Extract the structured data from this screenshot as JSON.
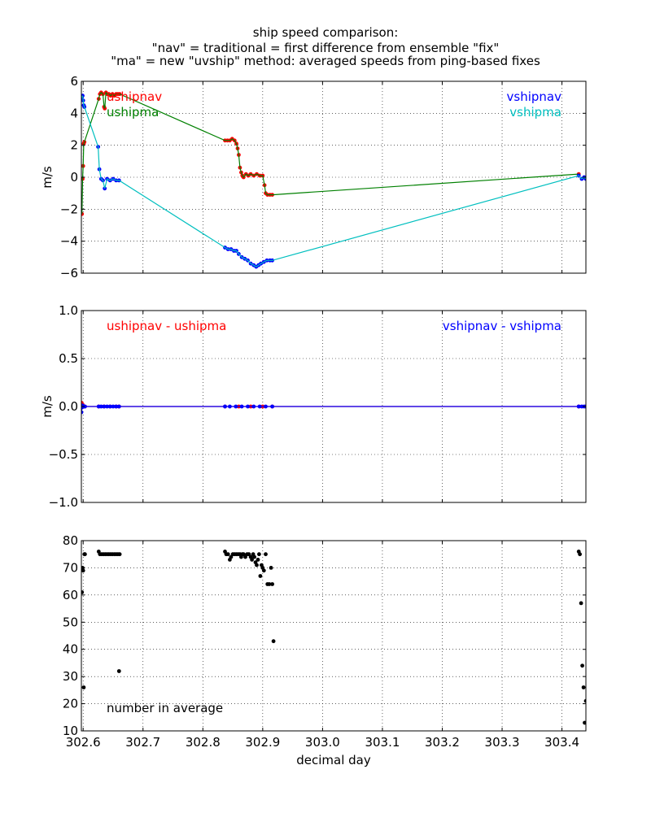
{
  "figure": {
    "title_lines": [
      "ship speed comparison:",
      "\"nav\" = traditional = first difference from ensemble \"fix\"",
      "\"ma\" = new \"uvship\" method: averaged speeds from ping-based fixes"
    ],
    "xlabel": "decimal day"
  },
  "chart_data": [
    {
      "type": "line",
      "ylabel": "m/s",
      "xlim": [
        302.597,
        303.44
      ],
      "ylim": [
        -6,
        6
      ],
      "x_ticks": [
        302.6,
        302.7,
        302.8,
        302.9,
        303.0,
        303.1,
        303.2,
        303.3,
        303.4
      ],
      "x_tick_labels": [],
      "y_ticks": [
        -6,
        -4,
        -2,
        0,
        2,
        4,
        6
      ],
      "y_tick_labels": [
        "−6",
        "−4",
        "−2",
        "0",
        "2",
        "4",
        "6"
      ],
      "grid": true,
      "annotations": [
        {
          "text": "ushipnav",
          "color": "#ff0000",
          "corner": "top-left"
        },
        {
          "text": "ushipma",
          "color": "#008000",
          "corner": "top-left"
        },
        {
          "text": "vshipnav",
          "color": "#0000ff",
          "corner": "top-right"
        },
        {
          "text": "vshipma",
          "color": "#00bfbf",
          "corner": "top-right"
        }
      ],
      "series": [
        {
          "name": "ushipnav",
          "color": "#ff0000",
          "style": "dots",
          "x": [
            302.598,
            302.599,
            302.6,
            302.601,
            302.602,
            302.626,
            302.628,
            302.63,
            302.633,
            302.635,
            302.636,
            302.638,
            302.64,
            302.643,
            302.646,
            302.649,
            302.652,
            302.655,
            302.658,
            302.661,
            302.837,
            302.841,
            302.845,
            302.849,
            302.853,
            302.856,
            302.858,
            302.86,
            302.862,
            302.864,
            302.866,
            302.868,
            302.872,
            302.876,
            302.88,
            302.885,
            302.89,
            302.895,
            302.9,
            302.903,
            302.905,
            302.908,
            302.912,
            302.916,
            303.428
          ],
          "y": [
            -2.3,
            -0.1,
            0.7,
            2.1,
            2.2,
            4.9,
            5.2,
            5.3,
            5.2,
            4.4,
            4.3,
            5.3,
            5.2,
            5.2,
            5.1,
            5.2,
            5.1,
            5.2,
            5.2,
            5.2,
            2.3,
            2.3,
            2.3,
            2.4,
            2.3,
            2.1,
            1.8,
            1.4,
            0.6,
            0.3,
            0.1,
            0.0,
            0.2,
            0.1,
            0.2,
            0.1,
            0.2,
            0.1,
            0.1,
            -0.5,
            -1.0,
            -1.1,
            -1.1,
            -1.1,
            0.2
          ]
        },
        {
          "name": "ushipma",
          "color": "#008000",
          "style": "line",
          "x": [
            302.598,
            302.599,
            302.6,
            302.601,
            302.602,
            302.626,
            302.628,
            302.63,
            302.633,
            302.635,
            302.636,
            302.638,
            302.64,
            302.643,
            302.646,
            302.649,
            302.652,
            302.655,
            302.658,
            302.661,
            302.837,
            302.841,
            302.845,
            302.849,
            302.853,
            302.856,
            302.858,
            302.86,
            302.862,
            302.864,
            302.866,
            302.868,
            302.872,
            302.876,
            302.88,
            302.885,
            302.89,
            302.895,
            302.9,
            302.903,
            302.905,
            302.908,
            302.912,
            302.916,
            303.428
          ],
          "y": [
            -2.3,
            -0.1,
            0.7,
            2.1,
            2.2,
            4.9,
            5.2,
            5.3,
            5.2,
            4.4,
            4.3,
            5.3,
            5.2,
            5.2,
            5.1,
            5.2,
            5.1,
            5.2,
            5.2,
            5.2,
            2.3,
            2.3,
            2.3,
            2.4,
            2.3,
            2.1,
            1.8,
            1.4,
            0.6,
            0.3,
            0.1,
            0.0,
            0.2,
            0.1,
            0.2,
            0.1,
            0.2,
            0.1,
            0.1,
            -0.5,
            -1.0,
            -1.1,
            -1.1,
            -1.1,
            0.2
          ]
        },
        {
          "name": "vshipnav",
          "color": "#0000ff",
          "style": "dots",
          "x": [
            302.598,
            302.599,
            302.6,
            302.601,
            302.602,
            302.625,
            302.627,
            302.63,
            302.633,
            302.636,
            302.64,
            302.645,
            302.65,
            302.655,
            302.66,
            302.837,
            302.842,
            302.847,
            302.852,
            302.856,
            302.86,
            302.865,
            302.87,
            302.875,
            302.88,
            302.885,
            302.889,
            302.893,
            302.897,
            302.902,
            302.907,
            302.912,
            302.916,
            303.428,
            303.433,
            303.437,
            303.44
          ],
          "y": [
            5.0,
            5.1,
            4.8,
            4.5,
            4.4,
            1.9,
            0.5,
            -0.1,
            -0.2,
            -0.7,
            -0.1,
            -0.2,
            -0.1,
            -0.2,
            -0.2,
            -4.4,
            -4.5,
            -4.5,
            -4.6,
            -4.6,
            -4.8,
            -5.0,
            -5.1,
            -5.2,
            -5.4,
            -5.5,
            -5.6,
            -5.5,
            -5.4,
            -5.3,
            -5.2,
            -5.2,
            -5.2,
            0.1,
            -0.1,
            0.0,
            -0.1
          ]
        },
        {
          "name": "vshipma",
          "color": "#00bfbf",
          "style": "line",
          "x": [
            302.598,
            302.599,
            302.6,
            302.601,
            302.602,
            302.625,
            302.627,
            302.63,
            302.633,
            302.636,
            302.64,
            302.645,
            302.65,
            302.655,
            302.66,
            302.837,
            302.842,
            302.847,
            302.852,
            302.856,
            302.86,
            302.865,
            302.87,
            302.875,
            302.88,
            302.885,
            302.889,
            302.893,
            302.897,
            302.902,
            302.907,
            302.912,
            302.916,
            303.428,
            303.433,
            303.437,
            303.44
          ],
          "y": [
            5.0,
            5.1,
            4.8,
            4.5,
            4.4,
            1.9,
            0.5,
            -0.1,
            -0.2,
            -0.7,
            -0.1,
            -0.2,
            -0.1,
            -0.2,
            -0.2,
            -4.4,
            -4.5,
            -4.5,
            -4.6,
            -4.6,
            -4.8,
            -5.0,
            -5.1,
            -5.2,
            -5.4,
            -5.5,
            -5.6,
            -5.5,
            -5.4,
            -5.3,
            -5.2,
            -5.2,
            -5.2,
            0.1,
            -0.1,
            0.0,
            -0.1
          ]
        }
      ]
    },
    {
      "type": "line",
      "ylabel": "m/s",
      "xlim": [
        302.597,
        303.44
      ],
      "ylim": [
        -1.0,
        1.0
      ],
      "x_ticks": [
        302.6,
        302.7,
        302.8,
        302.9,
        303.0,
        303.1,
        303.2,
        303.3,
        303.4
      ],
      "x_tick_labels": [],
      "y_ticks": [
        -1.0,
        -0.5,
        0.0,
        0.5,
        1.0
      ],
      "y_tick_labels": [
        "−1.0",
        "−0.5",
        "0.0",
        "0.5",
        "1.0"
      ],
      "grid": true,
      "annotations": [
        {
          "text": "ushipnav - ushipma",
          "color": "#ff0000",
          "corner": "top-left"
        },
        {
          "text": "vshipnav - vshipma",
          "color": "#0000ff",
          "corner": "top-right"
        }
      ],
      "series": [
        {
          "name": "ushipnav - ushipma",
          "color": "#ff0000",
          "style": "linedots",
          "x": [
            302.597,
            302.598,
            302.599,
            302.6,
            302.601,
            302.603,
            302.626,
            302.635,
            302.645,
            302.655,
            302.66,
            302.837,
            302.86,
            302.88,
            302.9,
            302.916,
            303.428,
            303.44
          ],
          "y": [
            0.04,
            -0.01,
            0.02,
            0.0,
            0.0,
            0.0,
            0.0,
            0.0,
            0.0,
            0.0,
            0.0,
            0.0,
            0.0,
            0.0,
            0.0,
            0.0,
            0.0,
            0.0
          ]
        },
        {
          "name": "vshipnav - vshipma",
          "color": "#0000ff",
          "style": "linedots",
          "x": [
            302.597,
            302.598,
            302.599,
            302.6,
            302.601,
            302.603,
            302.626,
            302.63,
            302.635,
            302.64,
            302.645,
            302.65,
            302.655,
            302.66,
            302.837,
            302.845,
            302.855,
            302.865,
            302.875,
            302.885,
            302.895,
            302.905,
            302.916,
            303.428,
            303.433,
            303.437,
            303.44
          ],
          "y": [
            -0.06,
            -0.01,
            0.01,
            0.0,
            0.0,
            0.0,
            0.0,
            0.0,
            0.0,
            0.0,
            0.0,
            0.0,
            0.0,
            0.0,
            0.0,
            0.0,
            0.0,
            0.0,
            0.0,
            0.0,
            0.0,
            0.0,
            0.0,
            0.0,
            0.0,
            0.0,
            0.0
          ]
        }
      ]
    },
    {
      "type": "scatter",
      "xlim": [
        302.597,
        303.44
      ],
      "ylim": [
        10,
        80
      ],
      "x_ticks": [
        302.6,
        302.7,
        302.8,
        302.9,
        303.0,
        303.1,
        303.2,
        303.3,
        303.4
      ],
      "x_tick_labels": [
        "302.6",
        "302.7",
        "302.8",
        "302.9",
        "303.0",
        "303.1",
        "303.2",
        "303.3",
        "303.4"
      ],
      "y_ticks": [
        10,
        20,
        30,
        40,
        50,
        60,
        70,
        80
      ],
      "y_tick_labels": [
        "10",
        "20",
        "30",
        "40",
        "50",
        "60",
        "70",
        "80"
      ],
      "grid": true,
      "annotations": [
        {
          "text": "number in average",
          "color": "#000000",
          "corner": "bottom-left"
        }
      ],
      "series": [
        {
          "name": "number in average",
          "color": "#000000",
          "style": "dots",
          "x": [
            302.598,
            302.599,
            302.6,
            302.601,
            302.602,
            302.603,
            302.626,
            302.628,
            302.631,
            302.634,
            302.637,
            302.64,
            302.643,
            302.646,
            302.649,
            302.652,
            302.655,
            302.658,
            302.66,
            302.661,
            302.837,
            302.839,
            302.842,
            302.845,
            302.847,
            302.85,
            302.853,
            302.856,
            302.859,
            302.862,
            302.864,
            302.866,
            302.868,
            302.871,
            302.874,
            302.877,
            302.88,
            302.882,
            302.884,
            302.886,
            302.888,
            302.89,
            302.892,
            302.894,
            302.896,
            302.898,
            302.9,
            302.902,
            302.905,
            302.908,
            302.911,
            302.914,
            302.916,
            302.918,
            303.428,
            303.43,
            303.432,
            303.434,
            303.436,
            303.438,
            303.44
          ],
          "y": [
            61,
            70,
            69,
            26,
            75,
            75,
            76,
            75,
            75,
            75,
            75,
            75,
            75,
            75,
            75,
            75,
            75,
            75,
            32,
            75,
            76,
            75,
            75,
            73,
            74,
            75,
            75,
            75,
            75,
            75,
            74,
            75,
            75,
            74,
            75,
            75,
            74,
            73,
            75,
            74,
            72,
            71,
            73,
            75,
            67,
            71,
            70,
            69,
            75,
            64,
            64,
            70,
            64,
            43,
            76,
            75,
            57,
            34,
            26,
            13,
            21
          ]
        }
      ]
    }
  ]
}
